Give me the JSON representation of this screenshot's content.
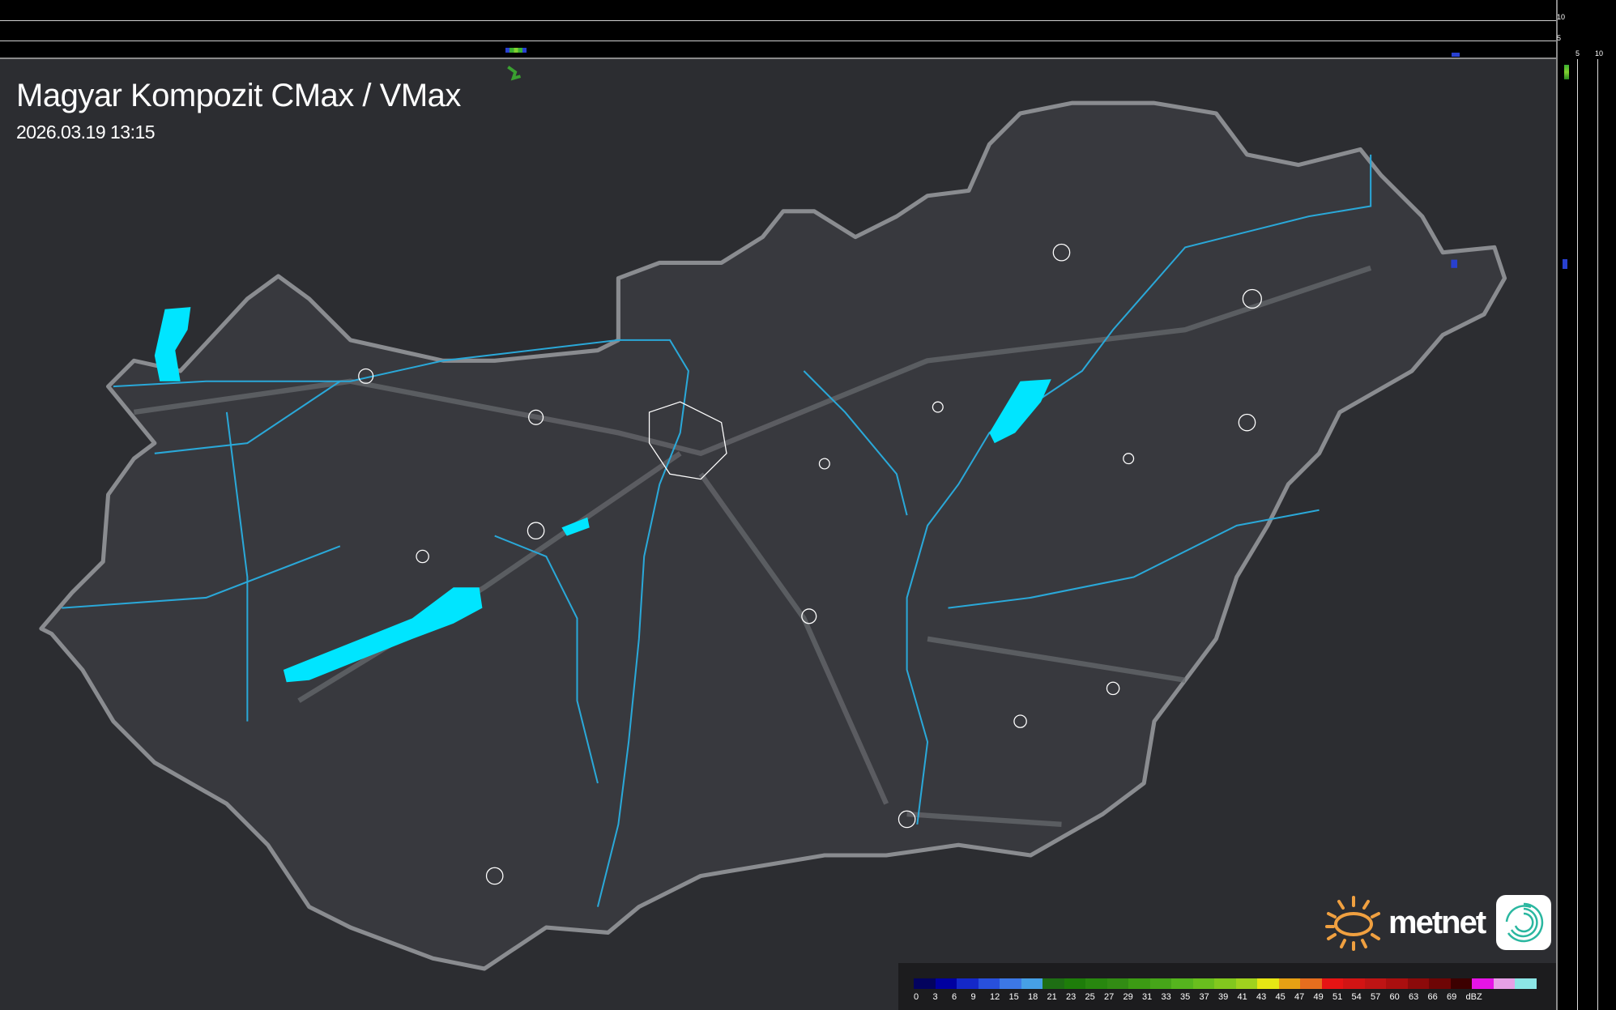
{
  "header": {
    "title": "Magyar Kompozit CMax / VMax",
    "datetime": "2026.03.19 13:15"
  },
  "profile_axes": {
    "top_ticks": [
      "10",
      "5"
    ],
    "right_ticks": [
      "5",
      "10"
    ]
  },
  "legend": {
    "unit": "dBZ",
    "labels": [
      "0",
      "3",
      "6",
      "9",
      "12",
      "15",
      "18",
      "21",
      "23",
      "25",
      "27",
      "29",
      "31",
      "33",
      "35",
      "37",
      "39",
      "41",
      "43",
      "45",
      "47",
      "49",
      "51",
      "54",
      "57",
      "60",
      "63",
      "66",
      "69"
    ],
    "colors": [
      "#03035e",
      "#0000a0",
      "#1428c8",
      "#2850dc",
      "#3c78e6",
      "#46a0e6",
      "#1e6e14",
      "#1e7d0a",
      "#28870f",
      "#328c14",
      "#3c9b14",
      "#46a519",
      "#55b41e",
      "#69be1e",
      "#82c81e",
      "#a0d21e",
      "#e6e614",
      "#e6a014",
      "#e66e1e",
      "#e61414",
      "#d21414",
      "#be1414",
      "#aa0f0f",
      "#8c0a0a",
      "#6e0505",
      "#3c0000",
      "#e614e6",
      "#e6a0e6",
      "#8ce6e6"
    ]
  },
  "branding": {
    "logo_text": "metnet",
    "logo_color": "#f0a040"
  },
  "colors": {
    "water": "#00e5ff",
    "river": "#2aa8d8",
    "border": "#8a8c90",
    "country_fill": "#38393e"
  }
}
